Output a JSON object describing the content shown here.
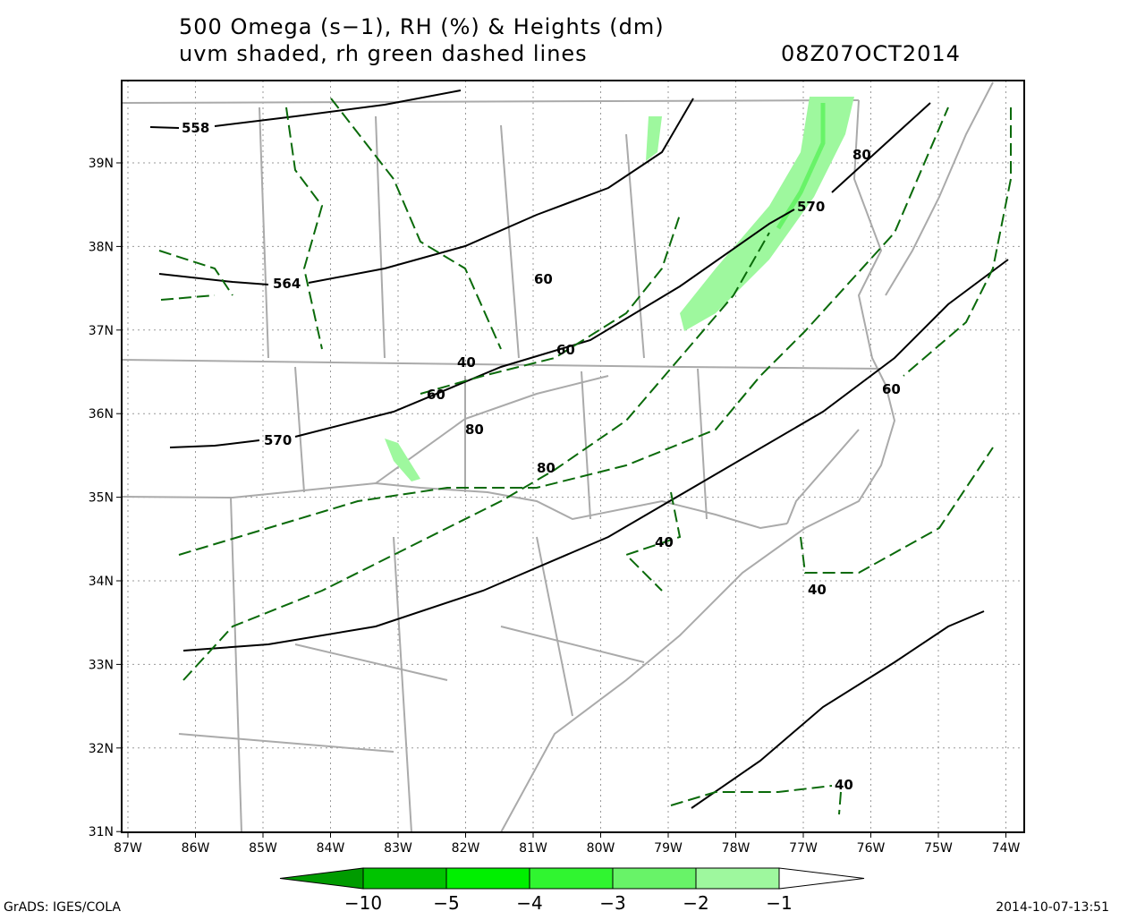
{
  "title": {
    "line1": "500 Omega (s−1), RH (%) & Heights (dm)",
    "line2": "uvm shaded, rh green dashed lines",
    "time": "08Z07OCT2014"
  },
  "lat_labels": [
    "39N",
    "38N",
    "37N",
    "36N",
    "35N",
    "34N",
    "33N",
    "32N",
    "31N"
  ],
  "lon_labels": [
    "87W",
    "86W",
    "85W",
    "84W",
    "83W",
    "82W",
    "81W",
    "80W",
    "79W",
    "78W",
    "77W",
    "76W",
    "75W",
    "74W"
  ],
  "height_labels": [
    "558",
    "564",
    "570",
    "570"
  ],
  "rh_labels": [
    "80",
    "60",
    "60",
    "40",
    "60",
    "80",
    "80",
    "60",
    "40",
    "40",
    "40"
  ],
  "colorbar": {
    "labels": [
      "−10",
      "−5",
      "−4",
      "−3",
      "−2",
      "−1"
    ],
    "colors": [
      "#009b00",
      "#00c400",
      "#00f000",
      "#30f530",
      "#68f368",
      "#9ef89e",
      "#ffffff"
    ]
  },
  "footer": {
    "left": "GrADS: IGES/COLA",
    "right": "2014-10-07-13:51"
  }
}
